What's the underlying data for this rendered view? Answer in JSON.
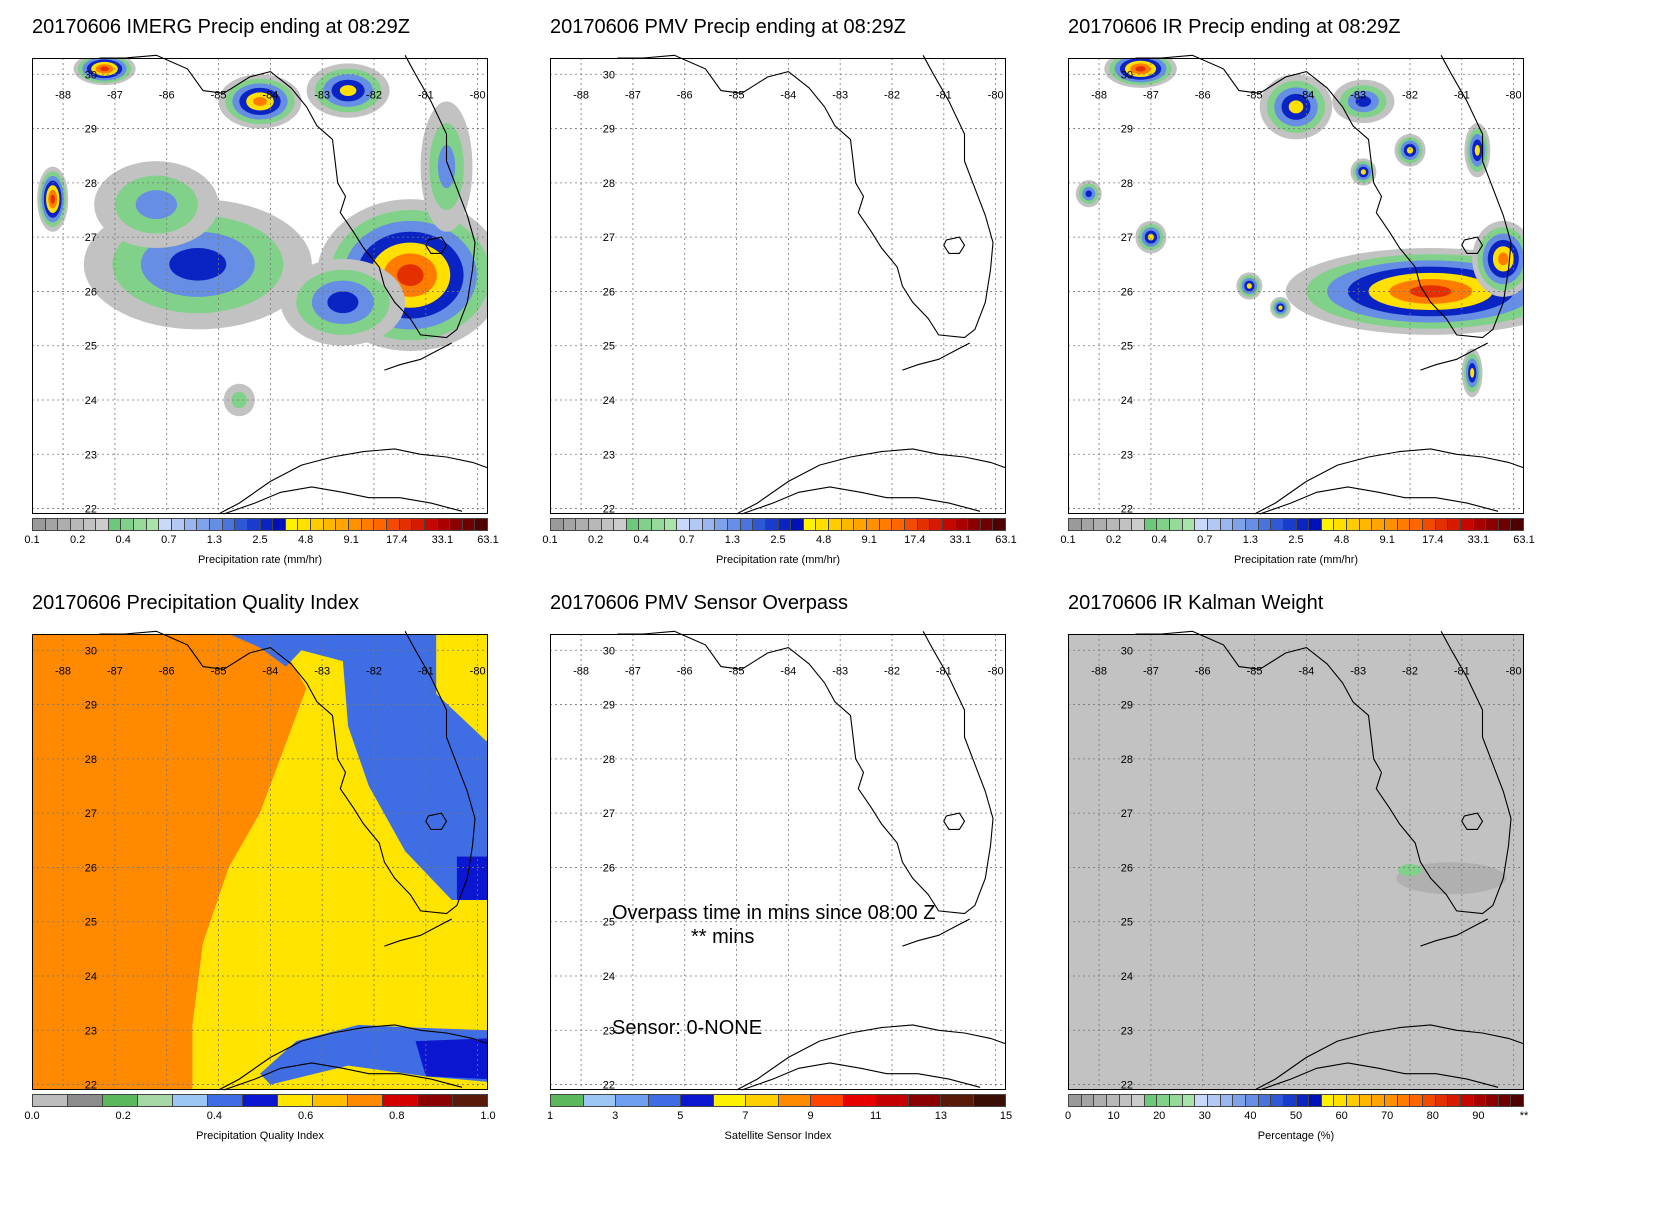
{
  "panels": [
    {
      "title": "20170606 IMERG Precip ending at 08:29Z",
      "fill": "precip1",
      "colorbar": {
        "colors": [
          "#9a9a9a",
          "#a4a4a4",
          "#aeaeae",
          "#b8b8b8",
          "#c2c2c2",
          "#cccccc",
          "#6ec87a",
          "#82d18a",
          "#96da9a",
          "#aae3aa",
          "#c8d8f8",
          "#b4c8f4",
          "#9ab6f0",
          "#80a2ea",
          "#668ee4",
          "#4a74dc",
          "#2e58d4",
          "#1a3ccc",
          "#0a24c4",
          "#0010b8",
          "#fff200",
          "#ffe000",
          "#ffcc00",
          "#ffb800",
          "#ffa400",
          "#ff9000",
          "#ff7c00",
          "#ff6600",
          "#f24a00",
          "#e43000",
          "#d61a00",
          "#c40800",
          "#a80000",
          "#8c0000",
          "#700000",
          "#500000"
        ],
        "tick_labels": [
          "0.1",
          "0.2",
          "0.4",
          "0.7",
          "1.3",
          "2.5",
          "4.8",
          "9.1",
          "17.4",
          "33.1",
          "63.1"
        ],
        "label": "Precipitation rate (mm/hr)"
      }
    },
    {
      "title": "20170606 PMV Precip ending at 08:29Z",
      "fill": "none",
      "colorbar": {
        "colors": [
          "#9a9a9a",
          "#a4a4a4",
          "#aeaeae",
          "#b8b8b8",
          "#c2c2c2",
          "#cccccc",
          "#6ec87a",
          "#82d18a",
          "#96da9a",
          "#aae3aa",
          "#c8d8f8",
          "#b4c8f4",
          "#9ab6f0",
          "#80a2ea",
          "#668ee4",
          "#4a74dc",
          "#2e58d4",
          "#1a3ccc",
          "#0a24c4",
          "#0010b8",
          "#fff200",
          "#ffe000",
          "#ffcc00",
          "#ffb800",
          "#ffa400",
          "#ff9000",
          "#ff7c00",
          "#ff6600",
          "#f24a00",
          "#e43000",
          "#d61a00",
          "#c40800",
          "#a80000",
          "#8c0000",
          "#700000",
          "#500000"
        ],
        "tick_labels": [
          "0.1",
          "0.2",
          "0.4",
          "0.7",
          "1.3",
          "2.5",
          "4.8",
          "9.1",
          "17.4",
          "33.1",
          "63.1"
        ],
        "label": "Precipitation rate (mm/hr)"
      }
    },
    {
      "title": "20170606 IR Precip ending at 08:29Z",
      "fill": "precip2",
      "colorbar": {
        "colors": [
          "#9a9a9a",
          "#a4a4a4",
          "#aeaeae",
          "#b8b8b8",
          "#c2c2c2",
          "#cccccc",
          "#6ec87a",
          "#82d18a",
          "#96da9a",
          "#aae3aa",
          "#c8d8f8",
          "#b4c8f4",
          "#9ab6f0",
          "#80a2ea",
          "#668ee4",
          "#4a74dc",
          "#2e58d4",
          "#1a3ccc",
          "#0a24c4",
          "#0010b8",
          "#fff200",
          "#ffe000",
          "#ffcc00",
          "#ffb800",
          "#ffa400",
          "#ff9000",
          "#ff7c00",
          "#ff6600",
          "#f24a00",
          "#e43000",
          "#d61a00",
          "#c40800",
          "#a80000",
          "#8c0000",
          "#700000",
          "#500000"
        ],
        "tick_labels": [
          "0.1",
          "0.2",
          "0.4",
          "0.7",
          "1.3",
          "2.5",
          "4.8",
          "9.1",
          "17.4",
          "33.1",
          "63.1"
        ],
        "label": "Precipitation rate (mm/hr)"
      }
    },
    {
      "title": "20170606 Precipitation Quality Index",
      "fill": "quality",
      "colorbar": {
        "colors": [
          "#bdbdbd",
          "#8c8c8c",
          "#5cb85c",
          "#a6d8a6",
          "#9cc7f4",
          "#3f6ee4",
          "#0a16d0",
          "#ffe400",
          "#ffbf00",
          "#ff8a00",
          "#d40000",
          "#8b0000",
          "#5a1a0a"
        ],
        "tick_labels": [
          "0.0",
          "0.2",
          "0.4",
          "0.6",
          "0.8",
          "1.0"
        ],
        "label": "Precipitation Quality Index"
      }
    },
    {
      "title": "20170606 PMV Sensor Overpass",
      "fill": "none",
      "annotations": {
        "overpass": "Overpass time in mins since 08:00 Z",
        "mins": "** mins",
        "sensor": "Sensor:   0-NONE"
      },
      "colorbar": {
        "colors": [
          "#5cb85c",
          "#9cc7f4",
          "#6e9ff0",
          "#3f6ee4",
          "#0a16d0",
          "#fff200",
          "#ffd000",
          "#ff8a00",
          "#ff4400",
          "#e60000",
          "#c40000",
          "#8b0000",
          "#5a1a0a",
          "#3a0d05"
        ],
        "tick_labels": [
          "1",
          "3",
          "5",
          "7",
          "9",
          "11",
          "13",
          "15"
        ],
        "label": "Satellite Sensor Index"
      }
    },
    {
      "title": "20170606 IR Kalman Weight",
      "fill": "kalman",
      "colorbar": {
        "colors": [
          "#9a9a9a",
          "#a4a4a4",
          "#aeaeae",
          "#b8b8b8",
          "#c2c2c2",
          "#cccccc",
          "#6ec87a",
          "#82d18a",
          "#96da9a",
          "#aae3aa",
          "#c8d8f8",
          "#b4c8f4",
          "#9ab6f0",
          "#80a2ea",
          "#668ee4",
          "#4a74dc",
          "#2e58d4",
          "#1a3ccc",
          "#0a24c4",
          "#0010b8",
          "#fff200",
          "#ffe000",
          "#ffcc00",
          "#ffb800",
          "#ffa400",
          "#ff9000",
          "#ff7c00",
          "#ff6600",
          "#f24a00",
          "#e43000",
          "#d61a00",
          "#c40800",
          "#a80000",
          "#8c0000",
          "#700000",
          "#500000"
        ],
        "tick_labels": [
          "0",
          "10",
          "20",
          "30",
          "40",
          "50",
          "60",
          "70",
          "80",
          "90",
          "**"
        ],
        "label": "Percentage (%)"
      }
    }
  ],
  "axes": {
    "lon_labels": [
      "-88",
      "-87",
      "-86",
      "-85",
      "-84",
      "-83",
      "-82",
      "-81",
      "-80"
    ],
    "lat_labels": [
      "30",
      "29",
      "28",
      "27",
      "26",
      "25",
      "24",
      "23",
      "22"
    ]
  },
  "quality_colors": {
    "orange": "#ff8a00",
    "yellow": "#ffe400",
    "blue": "#3f6ee4",
    "darkblue": "#0a16d0"
  },
  "kalman_colors": {
    "gray": "#c2c2c2",
    "darkgray": "#b0b0b0",
    "green": "#82d18a"
  }
}
